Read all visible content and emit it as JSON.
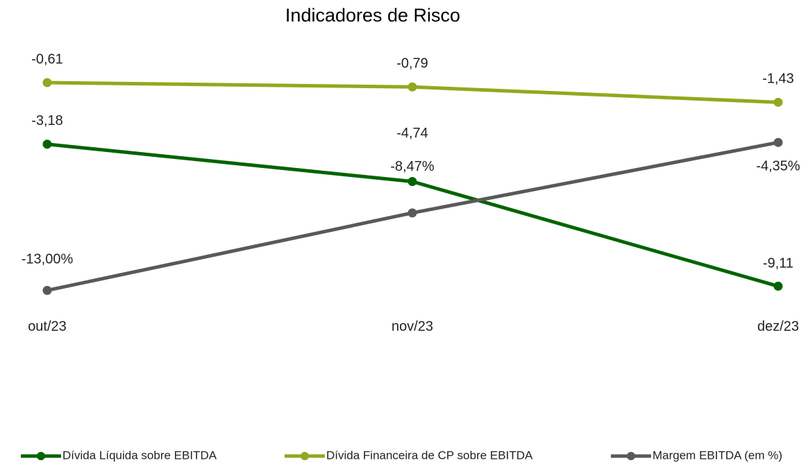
{
  "chart_data": {
    "type": "line",
    "title": "Indicadores de Risco",
    "categories": [
      "out/23",
      "nov/23",
      "dez/23"
    ],
    "ylim": [
      -10,
      0
    ],
    "y2lim": [
      -14,
      0
    ],
    "series": [
      {
        "name": "Dívida Líquida sobre EBITDA",
        "color": "#006400",
        "values": [
          -3.18,
          -4.74,
          -9.11
        ],
        "value_labels": [
          "-3,18",
          "-4,74",
          "-9,11"
        ]
      },
      {
        "name": "Dívida Financeira de CP sobre EBITDA",
        "color": "#8faa1e",
        "values": [
          -0.61,
          -0.79,
          -1.43
        ],
        "value_labels": [
          "-0,61",
          "-0,79",
          "-1,43"
        ]
      },
      {
        "name": "Margem EBITDA (em %)",
        "color": "#595959",
        "axis": "y2",
        "values": [
          -13.0,
          -8.47,
          -4.35
        ],
        "value_labels": [
          "-13,00%",
          "-8,47%",
          "-4,35%"
        ]
      }
    ]
  }
}
